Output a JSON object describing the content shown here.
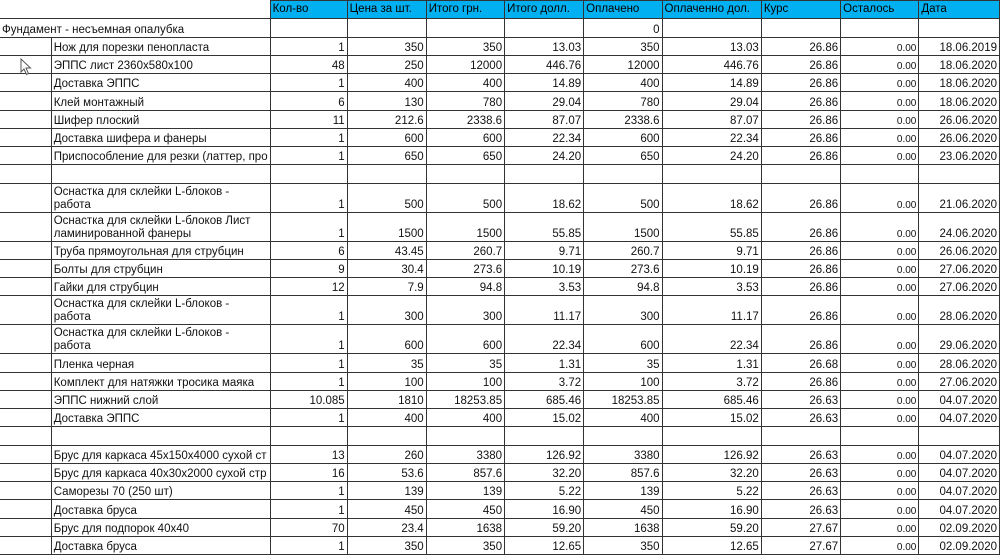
{
  "header": [
    "Кол-во",
    "Цена за шт.",
    "Итого грн.",
    "Итого долл.",
    "Оплачено",
    "Оплаченно дол.",
    "Курс",
    "Осталось",
    "Дата"
  ],
  "section": {
    "title": "Фундамент - несъемная опалубка",
    "paid": "0"
  },
  "rows": [
    {
      "name": "Нож для порезки пенопласта",
      "qty": "1",
      "price": "350",
      "total": "350",
      "total_usd": "13.03",
      "paid": "350",
      "paid_usd": "13.03",
      "rate": "26.86",
      "left": "0.00",
      "date": "18.06.2019"
    },
    {
      "name": "ЭППС лист 2360x580x100",
      "qty": "48",
      "price": "250",
      "total": "12000",
      "total_usd": "446.76",
      "paid": "12000",
      "paid_usd": "446.76",
      "rate": "26.86",
      "left": "0.00",
      "date": "18.06.2020"
    },
    {
      "name": "Доставка ЭППС",
      "qty": "1",
      "price": "400",
      "total": "400",
      "total_usd": "14.89",
      "paid": "400",
      "paid_usd": "14.89",
      "rate": "26.86",
      "left": "0.00",
      "date": "18.06.2020"
    },
    {
      "name": "Клей монтажный",
      "qty": "6",
      "price": "130",
      "total": "780",
      "total_usd": "29.04",
      "paid": "780",
      "paid_usd": "29.04",
      "rate": "26.86",
      "left": "0.00",
      "date": "18.06.2020"
    },
    {
      "name": "Шифер плоский",
      "qty": "11",
      "price": "212.6",
      "total": "2338.6",
      "total_usd": "87.07",
      "paid": "2338.6",
      "paid_usd": "87.07",
      "rate": "26.86",
      "left": "0.00",
      "date": "26.06.2020"
    },
    {
      "name": "Доставка шифера и фанеры",
      "qty": "1",
      "price": "600",
      "total": "600",
      "total_usd": "22.34",
      "paid": "600",
      "paid_usd": "22.34",
      "rate": "26.86",
      "left": "0.00",
      "date": "26.06.2020"
    },
    {
      "name": "Приспособление для резки (латтер, про",
      "qty": "1",
      "price": "650",
      "total": "650",
      "total_usd": "24.20",
      "paid": "650",
      "paid_usd": "24.20",
      "rate": "26.86",
      "left": "0.00",
      "date": "23.06.2020"
    },
    {
      "empty": true
    },
    {
      "tall": true,
      "name": "Оснастка для склейки L-блоков - работа",
      "qty": "1",
      "price": "500",
      "total": "500",
      "total_usd": "18.62",
      "paid": "500",
      "paid_usd": "18.62",
      "rate": "26.86",
      "left": "0.00",
      "date": "21.06.2020"
    },
    {
      "tall": true,
      "name": "Оснастка для склейки L-блоков Лист ламинированной фанеры",
      "qty": "1",
      "price": "1500",
      "total": "1500",
      "total_usd": "55.85",
      "paid": "1500",
      "paid_usd": "55.85",
      "rate": "26.86",
      "left": "0.00",
      "date": "24.06.2020"
    },
    {
      "name": "Труба прямоугольная для струбцин",
      "qty": "6",
      "price": "43.45",
      "total": "260.7",
      "total_usd": "9.71",
      "paid": "260.7",
      "paid_usd": "9.71",
      "rate": "26.86",
      "left": "0.00",
      "date": "26.06.2020"
    },
    {
      "name": "Болты для струбцин",
      "qty": "9",
      "price": "30.4",
      "total": "273.6",
      "total_usd": "10.19",
      "paid": "273.6",
      "paid_usd": "10.19",
      "rate": "26.86",
      "left": "0.00",
      "date": "27.06.2020"
    },
    {
      "name": "Гайки для струбцин",
      "qty": "12",
      "price": "7.9",
      "total": "94.8",
      "total_usd": "3.53",
      "paid": "94.8",
      "paid_usd": "3.53",
      "rate": "26.86",
      "left": "0.00",
      "date": "27.06.2020"
    },
    {
      "tall": true,
      "name": "Оснастка для склейки L-блоков - работа",
      "qty": "1",
      "price": "300",
      "total": "300",
      "total_usd": "11.17",
      "paid": "300",
      "paid_usd": "11.17",
      "rate": "26.86",
      "left": "0.00",
      "date": "28.06.2020"
    },
    {
      "tall": true,
      "name": "Оснастка для склейки L-блоков - работа",
      "qty": "1",
      "price": "600",
      "total": "600",
      "total_usd": "22.34",
      "paid": "600",
      "paid_usd": "22.34",
      "rate": "26.86",
      "left": "0.00",
      "date": "29.06.2020"
    },
    {
      "name": "Пленка черная",
      "qty": "1",
      "price": "35",
      "total": "35",
      "total_usd": "1.31",
      "paid": "35",
      "paid_usd": "1.31",
      "rate": "26.68",
      "left": "0.00",
      "date": "28.06.2020"
    },
    {
      "name": "Комплект для натяжки тросика маяка",
      "qty": "1",
      "price": "100",
      "total": "100",
      "total_usd": "3.72",
      "paid": "100",
      "paid_usd": "3.72",
      "rate": "26.86",
      "left": "0.00",
      "date": "27.06.2020"
    },
    {
      "name": "ЭППС нижний слой",
      "qty": "10.085",
      "price": "1810",
      "total": "18253.85",
      "total_usd": "685.46",
      "paid": "18253.85",
      "paid_usd": "685.46",
      "rate": "26.63",
      "left": "0.00",
      "date": "04.07.2020"
    },
    {
      "name": "Доставка ЭППС",
      "qty": "1",
      "price": "400",
      "total": "400",
      "total_usd": "15.02",
      "paid": "400",
      "paid_usd": "15.02",
      "rate": "26.63",
      "left": "0.00",
      "date": "04.07.2020"
    },
    {
      "empty": true
    },
    {
      "name": "Брус для каркаса 45x150x4000 сухой ст",
      "qty": "13",
      "price": "260",
      "total": "3380",
      "total_usd": "126.92",
      "paid": "3380",
      "paid_usd": "126.92",
      "rate": "26.63",
      "left": "0.00",
      "date": "04.07.2020"
    },
    {
      "name": "Брус для каркаса 40x30x2000 сухой стр",
      "qty": "16",
      "price": "53.6",
      "total": "857.6",
      "total_usd": "32.20",
      "paid": "857.6",
      "paid_usd": "32.20",
      "rate": "26.63",
      "left": "0.00",
      "date": "04.07.2020"
    },
    {
      "name": "Саморезы 70 (250 шт)",
      "qty": "1",
      "price": "139",
      "total": "139",
      "total_usd": "5.22",
      "paid": "139",
      "paid_usd": "5.22",
      "rate": "26.63",
      "left": "0.00",
      "date": "04.07.2020"
    },
    {
      "name": "Доставка бруса",
      "qty": "1",
      "price": "450",
      "total": "450",
      "total_usd": "16.90",
      "paid": "450",
      "paid_usd": "16.90",
      "rate": "26.63",
      "left": "0.00",
      "date": "04.07.2020"
    },
    {
      "name": "Брус для подпорок 40x40",
      "qty": "70",
      "price": "23.4",
      "total": "1638",
      "total_usd": "59.20",
      "paid": "1638",
      "paid_usd": "59.20",
      "rate": "27.67",
      "left": "0.00",
      "date": "02.09.2020"
    },
    {
      "name": "Доставка бруса",
      "qty": "1",
      "price": "350",
      "total": "350",
      "total_usd": "12.65",
      "paid": "350",
      "paid_usd": "12.65",
      "rate": "27.67",
      "left": "0.00",
      "date": "02.09.2020"
    }
  ],
  "colors": {
    "header_bg": "#00b0f0",
    "grid": "#333333"
  },
  "cursor_icon": "mouse-pointer-icon"
}
